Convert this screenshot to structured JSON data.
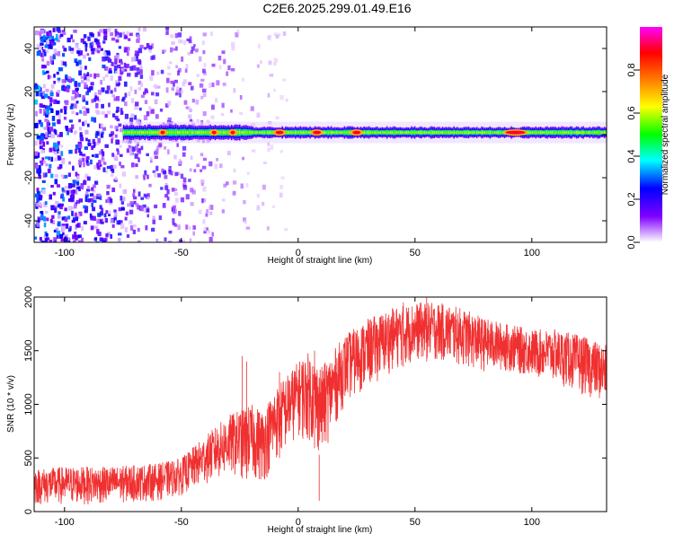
{
  "title": "C2E6.2025.299.01.49.E16",
  "chart_data": [
    {
      "type": "heatmap",
      "title": "C2E6.2025.299.01.49.E16",
      "xlabel": "Height of straight line (km)",
      "ylabel": "Frequency (Hz)",
      "xlim": [
        -113,
        132
      ],
      "ylim": [
        -50,
        50
      ],
      "xticks": [
        -100,
        -50,
        0,
        50,
        100
      ],
      "xtick_labels": [
        "-100",
        "-50",
        "0",
        "50",
        "100"
      ],
      "yticks": [
        -40,
        -20,
        0,
        20,
        40
      ],
      "ytick_labels": [
        "-40",
        "-20",
        "0",
        "20",
        "40"
      ],
      "colorbar": {
        "label": "Normalized spectral amplitude",
        "range": [
          0,
          1
        ],
        "ticks": [
          0,
          0.2,
          0.4,
          0.6,
          0.8
        ],
        "tick_labels": [
          "0.0",
          "0.2",
          "0.4",
          "0.6",
          "0.8"
        ],
        "colors": [
          "#ffffff",
          "#8000ff",
          "#0000ff",
          "#00ffff",
          "#00ff00",
          "#ffff00",
          "#ff8000",
          "#ff0000",
          "#ff00ff"
        ]
      },
      "description_points": {
        "band_center_hz": 1,
        "noise_region_km": [
          -113,
          -15
        ],
        "band_region_km": [
          -75,
          132
        ],
        "hot_spots_km": [
          -58,
          -36,
          -28,
          -8,
          8,
          25,
          93
        ]
      }
    },
    {
      "type": "line",
      "xlabel": "Height of straight line (km)",
      "ylabel": "SNR (10 * v/v)",
      "xlim": [
        -113,
        132
      ],
      "ylim": [
        0,
        2000
      ],
      "xticks": [
        -100,
        -50,
        0,
        50,
        100
      ],
      "xtick_labels": [
        "-100",
        "-50",
        "0",
        "50",
        "100"
      ],
      "yticks": [
        0,
        500,
        1000,
        1500,
        2000
      ],
      "ytick_labels": [
        "0",
        "500",
        "1000",
        "1500",
        "2000"
      ],
      "line_color": "#f03030",
      "envelope": {
        "x": [
          -113,
          -100,
          -80,
          -60,
          -50,
          -40,
          -30,
          -20,
          -15,
          -10,
          0,
          5,
          10,
          20,
          30,
          40,
          50,
          60,
          70,
          80,
          90,
          100,
          110,
          120,
          132
        ],
        "low": [
          60,
          60,
          70,
          100,
          150,
          250,
          330,
          300,
          250,
          450,
          700,
          650,
          500,
          1000,
          1150,
          1300,
          1400,
          1400,
          1350,
          1300,
          1300,
          1250,
          1200,
          1100,
          1000
        ],
        "high": [
          400,
          420,
          420,
          450,
          500,
          700,
          900,
          1000,
          950,
          1150,
          1400,
          1500,
          1350,
          1650,
          1800,
          1900,
          1950,
          1950,
          1900,
          1800,
          1750,
          1700,
          1700,
          1650,
          1550
        ]
      },
      "spikes": [
        {
          "x": -24,
          "y": 1450
        },
        {
          "x": -22,
          "y": 1400
        },
        {
          "x": -8,
          "y": 1300
        },
        {
          "x": 2,
          "y": 1400
        },
        {
          "x": 7,
          "y": 1500
        },
        {
          "x": 9,
          "y": 100
        },
        {
          "x": 45,
          "y": 1950
        },
        {
          "x": 55,
          "y": 2000
        }
      ]
    }
  ]
}
